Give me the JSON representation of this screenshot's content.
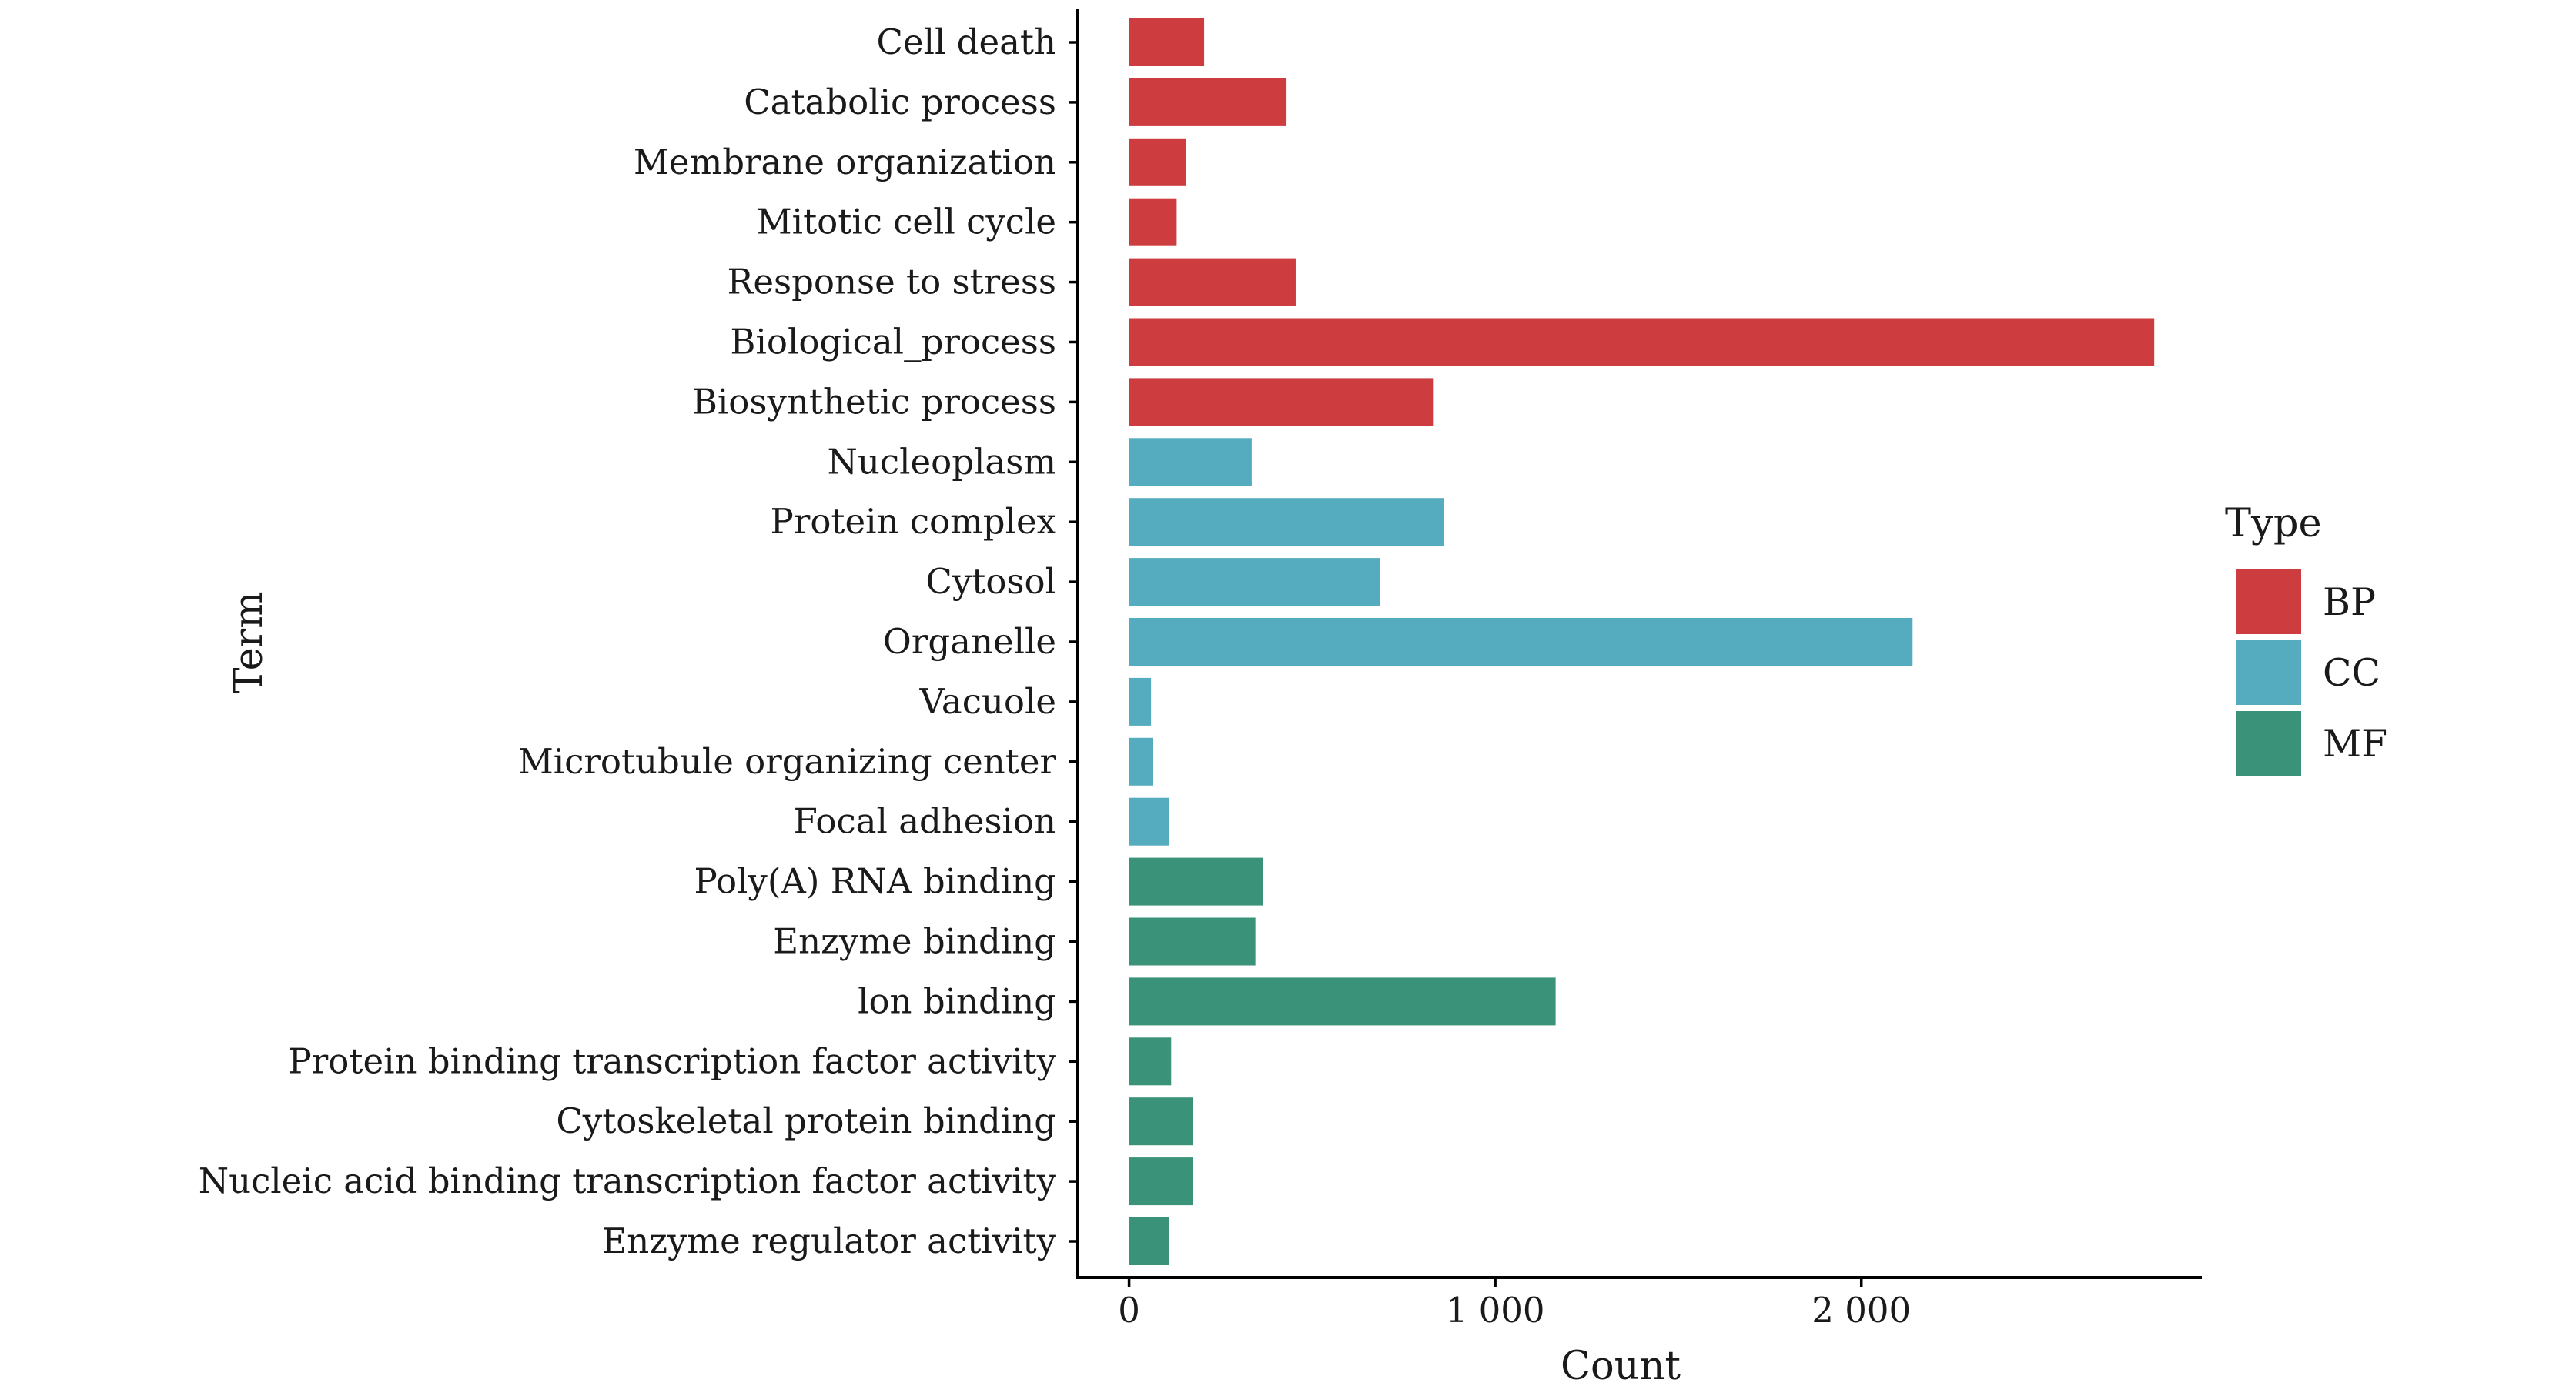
{
  "chart_data": {
    "type": "bar",
    "orientation": "horizontal",
    "xlabel": "Count",
    "ylabel": "Term",
    "xlim": [
      -140,
      2930
    ],
    "xticks": [
      0,
      1000,
      2000
    ],
    "xtick_labels": [
      "0",
      "1 000",
      "2 000"
    ],
    "grid": false,
    "legend": {
      "title": "Type",
      "position": "right",
      "entries": [
        {
          "name": "BP",
          "color": "#cd3d3f"
        },
        {
          "name": "CC",
          "color": "#54acbe"
        },
        {
          "name": "MF",
          "color": "#3a9278"
        }
      ]
    },
    "categories": [
      "Cell death",
      "Catabolic process",
      "Membrane organization",
      "Mitotic cell cycle",
      "Response to stress",
      "Biological_process",
      "Biosynthetic process",
      "Nucleoplasm",
      "Protein complex",
      "Cytosol",
      "Organelle",
      "Vacuole",
      "Microtubule organizing center",
      "Focal adhesion",
      "Poly(A) RNA binding",
      "Enzyme binding",
      "lon binding",
      "Protein binding transcription factor activity",
      "Cytoskeletal protein binding",
      "Nucleic acid binding transcription factor activity",
      "Enzyme regulator activity"
    ],
    "values": [
      205,
      430,
      155,
      130,
      455,
      2800,
      830,
      335,
      860,
      685,
      2140,
      60,
      65,
      110,
      365,
      345,
      1165,
      115,
      175,
      175,
      110
    ],
    "types": [
      "BP",
      "BP",
      "BP",
      "BP",
      "BP",
      "BP",
      "BP",
      "CC",
      "CC",
      "CC",
      "CC",
      "CC",
      "CC",
      "CC",
      "MF",
      "MF",
      "MF",
      "MF",
      "MF",
      "MF",
      "MF"
    ]
  }
}
